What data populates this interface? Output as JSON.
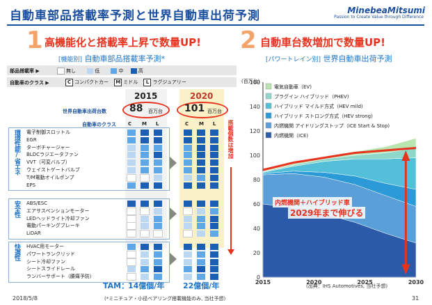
{
  "header": {
    "title": "自動車部品搭載率予測と世界自動車出荷予測",
    "logo": "MinebeaMitsumi",
    "logo_sub": "Passion to Create Value through Difference"
  },
  "left": {
    "number": "1",
    "title": "高機能化と搭載率上昇で数量UP!",
    "subtitle_bracket": "[機能別]",
    "subtitle": "自動車部品搭載率予測*",
    "legend_label": "部品搭載率 ▶",
    "legend": [
      {
        "label": "無し",
        "color": "#ffffff"
      },
      {
        "label": "低",
        "color": "#bcd7f2"
      },
      {
        "label": "中",
        "color": "#5fa8e8"
      },
      {
        "label": "高",
        "color": "#1a5fb4"
      }
    ],
    "class_label": "自動車のクラス ▶",
    "classes": [
      {
        "key": "C",
        "label": "コンパクトカー"
      },
      {
        "key": "M",
        "label": "ミドル"
      },
      {
        "key": "L",
        "label": "ラグジュアリー"
      }
    ],
    "year_2015": "2015",
    "year_2020": "2020",
    "ship_label": "世界自動車出荷台数",
    "ship_2015": "88",
    "ship_2020": "101",
    "ship_unit": "百万台",
    "class_row_label": "自動車のクラス",
    "col_heads": [
      "C",
      "M",
      "L"
    ],
    "side_note": "搭載個数は増加",
    "groups": [
      {
        "label": "環境性能/省エネ",
        "items": [
          "電子制御スロットル",
          "EGR",
          "ターボチャージャー",
          "BLDCラジエータファン",
          "VVT（可変バルブ）",
          "ウェイストゲートバルブ",
          "T/M電動オイルポンプ",
          "EPS"
        ]
      },
      {
        "label": "安全性",
        "items": [
          "ABS/ESC",
          "エアサスペンションモーター",
          "LEDヘッドライト冷却ファン",
          "電動パーキングブレーキ",
          "LiDAR"
        ]
      },
      {
        "label": "快適性",
        "items": [
          "HVAC用モーター",
          "パワートランクリッド",
          "シート冷却ファン",
          "シートスライドレール",
          "ランバーサポート（腰痛予防）"
        ]
      }
    ],
    "levels_2015": [
      [
        2,
        3,
        3
      ],
      [
        2,
        3,
        3
      ],
      [
        1,
        2,
        2
      ],
      [
        1,
        2,
        3
      ],
      [
        1,
        2,
        2
      ],
      [
        1,
        2,
        2
      ],
      [
        0,
        0,
        1
      ],
      [
        2,
        3,
        3
      ],
      [
        3,
        3,
        3
      ],
      [
        0,
        0,
        1
      ],
      [
        0,
        1,
        2
      ],
      [
        0,
        1,
        2
      ],
      [
        0,
        0,
        0
      ],
      [
        2,
        3,
        3
      ],
      [
        0,
        1,
        2
      ],
      [
        0,
        1,
        2
      ],
      [
        1,
        2,
        3
      ],
      [
        0,
        1,
        2
      ]
    ],
    "levels_2020": [
      [
        3,
        3,
        3
      ],
      [
        3,
        3,
        3
      ],
      [
        2,
        3,
        3
      ],
      [
        2,
        3,
        3
      ],
      [
        2,
        3,
        3
      ],
      [
        2,
        3,
        3
      ],
      [
        1,
        2,
        3
      ],
      [
        3,
        3,
        3
      ],
      [
        3,
        3,
        3
      ],
      [
        0,
        1,
        2
      ],
      [
        1,
        2,
        3
      ],
      [
        1,
        2,
        3
      ],
      [
        0,
        1,
        2
      ],
      [
        3,
        3,
        3
      ],
      [
        1,
        2,
        3
      ],
      [
        1,
        2,
        3
      ],
      [
        2,
        3,
        3
      ],
      [
        1,
        2,
        3
      ]
    ],
    "tam_label": "TAM：",
    "tam_2015": "14億個/年",
    "tam_2020": "22億個/年",
    "footnote": "(*ミニチュア・小径ベアリング搭載機能のみ, 当社予想)"
  },
  "right": {
    "number": "2",
    "title": "自動車台数増加で数量UP!",
    "subtitle_bracket": "[パワートレイン別]",
    "subtitle": "世界自動車出荷予測",
    "unit": "(百万台)",
    "annotation_1": "内燃機関＋ハイブリッド車",
    "annotation_2": "2029年まで伸びる",
    "source": "(出典：IHS Automotives, 当社予想)"
  },
  "chart_data": {
    "type": "area",
    "x": [
      2015,
      2018,
      2021,
      2024,
      2027,
      2030
    ],
    "ylim": [
      0,
      160
    ],
    "xlim": [
      2015,
      2030
    ],
    "yticks": [
      0,
      20,
      40,
      60,
      80,
      100,
      120,
      140,
      160
    ],
    "xticks": [
      2015,
      2020,
      2025,
      2030
    ],
    "series": [
      {
        "name": "内燃機関（ICE)",
        "color": "#2a5aa8",
        "values": [
          60,
          57,
          52,
          45,
          36,
          28
        ]
      },
      {
        "name": "内燃機関 アイドリングストップ（ICE Start & Stop)",
        "color": "#5b9fd8",
        "values": [
          24,
          28,
          30,
          31,
          31,
          30
        ]
      },
      {
        "name": "ハイブリッド ストロング方式（HEV strong)",
        "color": "#2d9ad8",
        "values": [
          1,
          2,
          4,
          7,
          10,
          14
        ]
      },
      {
        "name": "ハイブリッド マイルド方式（HEV mild)",
        "color": "#53bfd8",
        "values": [
          1,
          4,
          9,
          14,
          20,
          26
        ]
      },
      {
        "name": "プラグイン ハイブリッド（PHEV)",
        "color": "#8fd8c9",
        "values": [
          0.5,
          1,
          2,
          3,
          5,
          8
        ]
      },
      {
        "name": "電気自動車（EV)",
        "color": "#b9e6b0",
        "values": [
          0.5,
          1,
          2,
          3,
          5,
          8
        ]
      }
    ],
    "highlight_line": {
      "values": [
        88,
        94,
        98,
        102,
        104,
        106
      ],
      "color": "#e8321e"
    }
  }
}
